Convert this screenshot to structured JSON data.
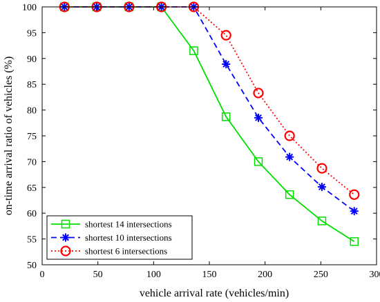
{
  "chart_data": {
    "type": "line",
    "xlabel": "vehicle arrival rate (vehicles/min)",
    "ylabel": "on-time arrival ratio of vehicles (%)",
    "xlim": [
      0,
      300
    ],
    "ylim": [
      50,
      100
    ],
    "xticks": [
      0,
      50,
      100,
      150,
      200,
      250,
      300
    ],
    "yticks": [
      50,
      55,
      60,
      65,
      70,
      75,
      80,
      85,
      90,
      95,
      100
    ],
    "grid": false,
    "legend_position": "bottom-left",
    "x": [
      20,
      49,
      78,
      107,
      136,
      165,
      194,
      222,
      251,
      280
    ],
    "series": [
      {
        "name": "shortest 14 intersections",
        "color": "#00e000",
        "line_style": "solid",
        "marker": "square",
        "values": [
          100,
          100,
          100,
          100,
          91.5,
          78.7,
          70.0,
          63.6,
          58.5,
          54.5
        ]
      },
      {
        "name": "shortest 10 intersections",
        "color": "#0000ff",
        "line_style": "dashed",
        "marker": "asterisk",
        "values": [
          100,
          100,
          100,
          100,
          100,
          88.9,
          78.5,
          70.9,
          65.1,
          60.4
        ]
      },
      {
        "name": "shortest 6 intersections",
        "color": "#ff0000",
        "line_style": "dotted",
        "marker": "circle",
        "values": [
          100,
          100,
          100,
          100,
          100,
          94.5,
          83.3,
          75.0,
          68.7,
          63.6
        ]
      }
    ]
  }
}
